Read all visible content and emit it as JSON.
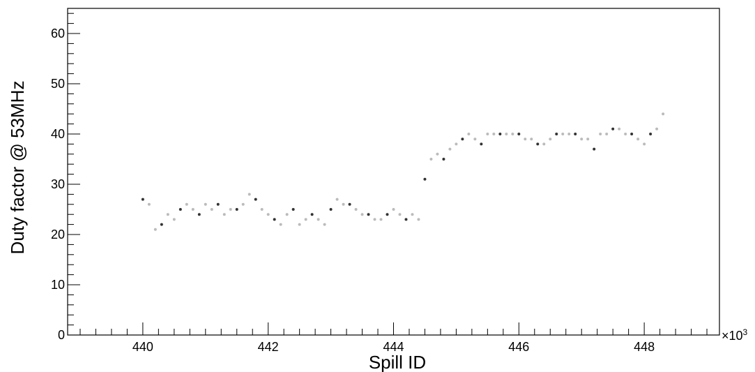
{
  "chart_data": {
    "type": "scatter",
    "title": "",
    "xlabel": "Spill ID",
    "ylabel": "Duty factor @ 53MHz",
    "x_multiplier_label": "×10",
    "x_multiplier_exponent": "3",
    "xlim": [
      438.8,
      449.2
    ],
    "ylim": [
      0,
      65
    ],
    "x_ticks": [
      440,
      442,
      444,
      446,
      448
    ],
    "x_tick_labels": [
      "440",
      "442",
      "444",
      "446",
      "448"
    ],
    "y_ticks": [
      0,
      10,
      20,
      30,
      40,
      50,
      60
    ],
    "y_tick_labels": [
      "0",
      "10",
      "20",
      "30",
      "40",
      "50",
      "60"
    ],
    "grid": false,
    "legend": "none",
    "marker_color_dense": "#333333",
    "marker_color_sparse": "#bbbbbb",
    "series": [
      {
        "x": [
          440.0,
          440.1,
          440.2,
          440.3,
          440.4,
          440.5,
          440.6,
          440.7,
          440.8,
          440.9,
          441.0,
          441.1,
          441.2,
          441.3,
          441.4,
          441.5,
          441.6,
          441.7,
          441.8,
          441.9,
          442.0,
          442.1,
          442.2,
          442.3,
          442.4,
          442.5,
          442.6,
          442.7,
          442.8,
          442.9,
          443.0,
          443.1,
          443.2,
          443.3,
          443.4,
          443.5,
          443.6,
          443.7,
          443.8,
          443.9,
          444.0,
          444.1,
          444.2,
          444.3,
          444.4,
          444.5,
          444.6,
          444.7,
          444.8,
          444.9,
          445.0,
          445.1,
          445.2,
          445.3,
          445.4,
          445.5,
          445.6,
          445.7,
          445.8,
          445.9,
          446.0,
          446.1,
          446.2,
          446.3,
          446.4,
          446.5,
          446.6,
          446.7,
          446.8,
          446.9,
          447.0,
          447.1,
          447.2,
          447.3,
          447.4,
          447.5,
          447.6,
          447.7,
          447.8,
          447.9,
          448.0,
          448.1,
          448.2,
          448.3
        ],
        "y": [
          27,
          26,
          21,
          22,
          24,
          23,
          25,
          26,
          25,
          24,
          26,
          25,
          26,
          24,
          25,
          25,
          26,
          28,
          27,
          25,
          24,
          23,
          22,
          24,
          25,
          22,
          23,
          24,
          23,
          22,
          25,
          27,
          26,
          26,
          25,
          24,
          24,
          23,
          23,
          24,
          25,
          24,
          23,
          24,
          23,
          31,
          35,
          36,
          35,
          37,
          38,
          39,
          40,
          39,
          38,
          40,
          40,
          40,
          40,
          40,
          40,
          39,
          39,
          38,
          38,
          39,
          40,
          40,
          40,
          40,
          39,
          39,
          37,
          40,
          40,
          41,
          41,
          40,
          40,
          39,
          38,
          40,
          41,
          44
        ]
      }
    ]
  }
}
